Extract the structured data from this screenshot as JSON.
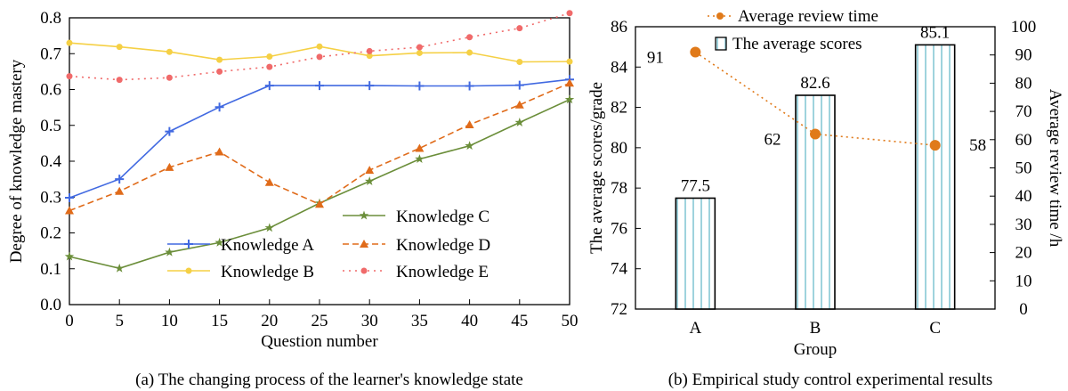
{
  "chart_data": [
    {
      "type": "line",
      "caption": "(a) The changing process of the learner's knowledge state",
      "xlabel": "Question number",
      "ylabel": "Degree of knowledge mastery",
      "x": [
        0,
        5,
        10,
        15,
        20,
        25,
        30,
        35,
        40,
        45,
        50
      ],
      "xlim": [
        0,
        50
      ],
      "ylim": [
        0,
        0.8
      ],
      "xticks": [
        "0",
        "5",
        "10",
        "15",
        "20",
        "25",
        "30",
        "35",
        "40",
        "45",
        "50"
      ],
      "yticks": [
        "0.0",
        "0.1",
        "0.2",
        "0.3",
        "0.4",
        "0.5",
        "0.6",
        "0.7",
        "0.8"
      ],
      "grid": false,
      "legend_position": "bottom-right",
      "series": [
        {
          "name": "Knowledge A",
          "color": "#4169e1",
          "marker": "plus",
          "dash": "solid",
          "values": [
            0.298,
            0.35,
            0.483,
            0.551,
            0.611,
            0.611,
            0.611,
            0.61,
            0.61,
            0.612,
            0.628
          ]
        },
        {
          "name": "Knowledge B",
          "color": "#f5d045",
          "marker": "circle",
          "dash": "solid",
          "values": [
            0.73,
            0.719,
            0.705,
            0.683,
            0.692,
            0.72,
            0.694,
            0.702,
            0.703,
            0.677,
            0.678
          ]
        },
        {
          "name": "Knowledge C",
          "color": "#6b8e3a",
          "marker": "star",
          "dash": "solid",
          "values": [
            0.134,
            0.101,
            0.146,
            0.173,
            0.214,
            0.283,
            0.344,
            0.406,
            0.443,
            0.508,
            0.572
          ]
        },
        {
          "name": "Knowledge D",
          "color": "#e06b1a",
          "marker": "triangle",
          "dash": "dashed",
          "values": [
            0.262,
            0.316,
            0.383,
            0.426,
            0.341,
            0.28,
            0.375,
            0.436,
            0.502,
            0.557,
            0.618
          ]
        },
        {
          "name": "Knowledge E",
          "color": "#f06a6a",
          "marker": "circle",
          "dash": "dotted",
          "values": [
            0.637,
            0.627,
            0.633,
            0.65,
            0.663,
            0.691,
            0.707,
            0.718,
            0.746,
            0.771,
            0.813
          ]
        }
      ],
      "legend_layout": [
        [
          "Knowledge C"
        ],
        [
          "Knowledge A",
          "Knowledge D"
        ],
        [
          "Knowledge B",
          "Knowledge E"
        ]
      ]
    },
    {
      "type": "bar",
      "caption": "(b) Empirical study control experimental results",
      "xlabel": "Group",
      "ylabel": "The average scores/grade",
      "y2label": "Average review time /h",
      "categories": [
        "A",
        "B",
        "C"
      ],
      "ylim": [
        72,
        86
      ],
      "y2lim": [
        0,
        100
      ],
      "yticks": [
        "72",
        "74",
        "76",
        "78",
        "80",
        "82",
        "84",
        "86"
      ],
      "y2ticks": [
        "0",
        "10",
        "20",
        "30",
        "40",
        "50",
        "60",
        "70",
        "80",
        "90",
        "100"
      ],
      "grid": false,
      "legend_position": "top-center",
      "series": [
        {
          "name": "The average scores",
          "type": "bar",
          "axis": "left",
          "bar_fill": "#ffffff",
          "bar_stripe_color": "#9fd3dd",
          "bar_edge": "#000000",
          "values": [
            77.5,
            82.6,
            85.1
          ],
          "labels": [
            "77.5",
            "82.6",
            "85.1"
          ]
        },
        {
          "name": "Average review time",
          "type": "line",
          "axis": "right",
          "color": "#e07a1a",
          "dash": "dotted",
          "marker": "circle",
          "values": [
            91,
            62,
            58
          ],
          "labels": [
            "91",
            "62",
            "58"
          ]
        }
      ],
      "legend_order": [
        "Average review time",
        "The average scores"
      ]
    }
  ]
}
